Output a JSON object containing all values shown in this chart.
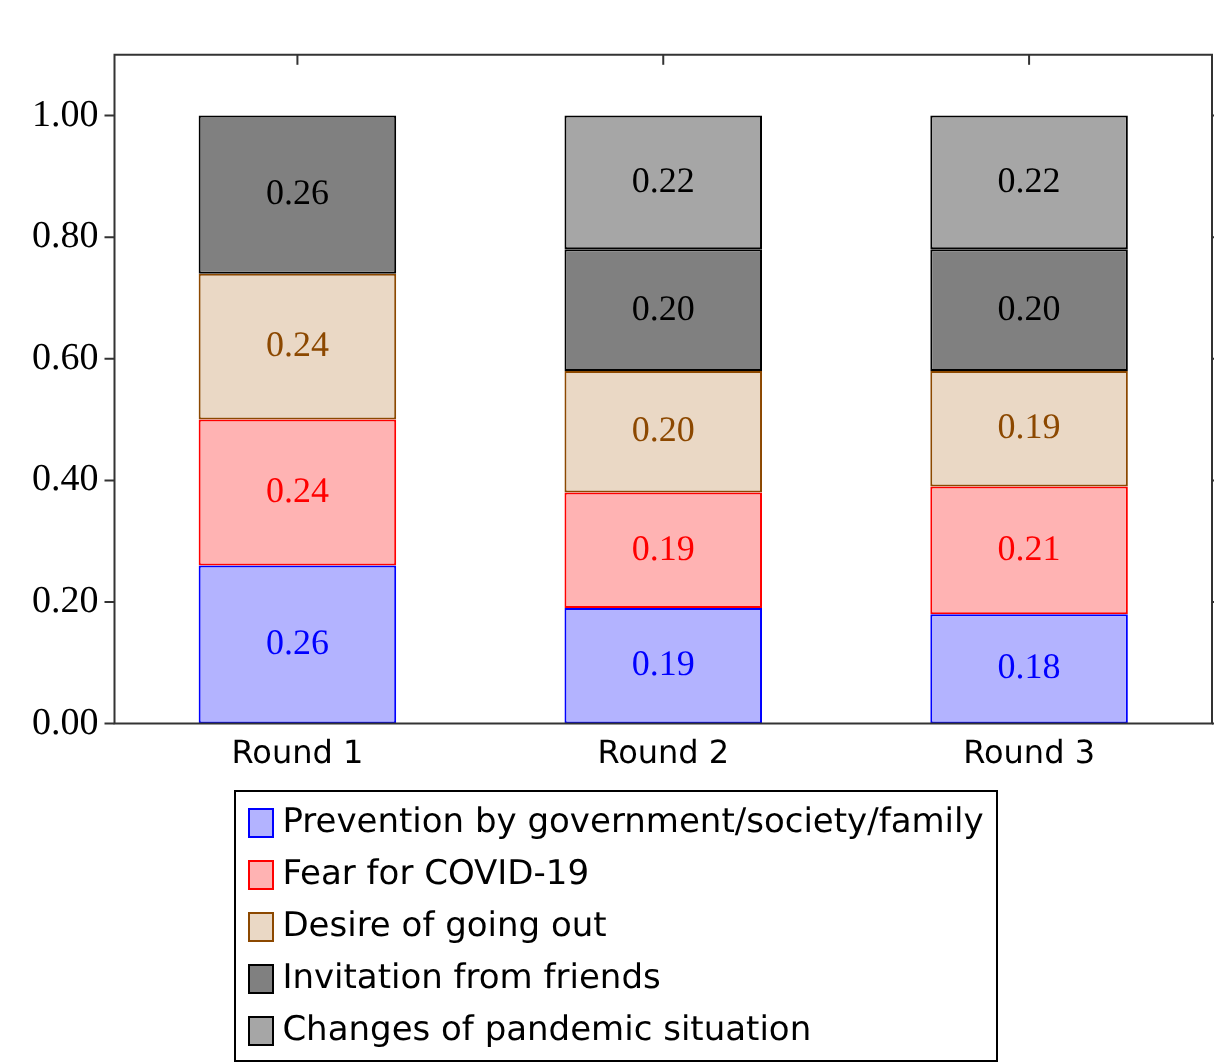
{
  "chart_data": {
    "type": "bar",
    "stacked": true,
    "categories": [
      "Round 1",
      "Round 2",
      "Round 3"
    ],
    "series": [
      {
        "name": "Prevention by government/society/family",
        "color": "#b3b3ff",
        "values": [
          0.26,
          0.19,
          0.18
        ],
        "value_labels": [
          "0.26",
          "0.19",
          "0.18"
        ]
      },
      {
        "name": "Fear for COVID-19",
        "color": "#ffb3b3",
        "values": [
          0.24,
          0.19,
          0.21
        ],
        "value_labels": [
          "0.24",
          "0.19",
          "0.21"
        ]
      },
      {
        "name": "Desire of going out",
        "color": "#ead8c5",
        "values": [
          0.24,
          0.2,
          0.19
        ],
        "value_labels": [
          "0.24",
          "0.20",
          "0.19"
        ]
      },
      {
        "name": "Invitation from friends",
        "color": "#808080",
        "values": [
          0.26,
          0.2,
          0.2
        ],
        "value_labels": [
          "0.26",
          "0.20",
          "0.20"
        ]
      },
      {
        "name": "Changes of pandemic situation",
        "color": "#a6a6a6",
        "values": [
          null,
          0.22,
          0.22
        ],
        "value_labels": [
          null,
          "0.22",
          "0.22"
        ]
      }
    ],
    "ylim": [
      0,
      1.1
    ],
    "yticks": [
      {
        "value": 0,
        "label": "0.00"
      },
      {
        "value": 0.2,
        "label": "0.20"
      },
      {
        "value": 0.4,
        "label": "0.40"
      },
      {
        "value": 0.6,
        "label": "0.60"
      },
      {
        "value": 0.8,
        "label": "0.80"
      },
      {
        "value": 1,
        "label": "1.00"
      }
    ],
    "legend": "bottom",
    "grid": false
  }
}
